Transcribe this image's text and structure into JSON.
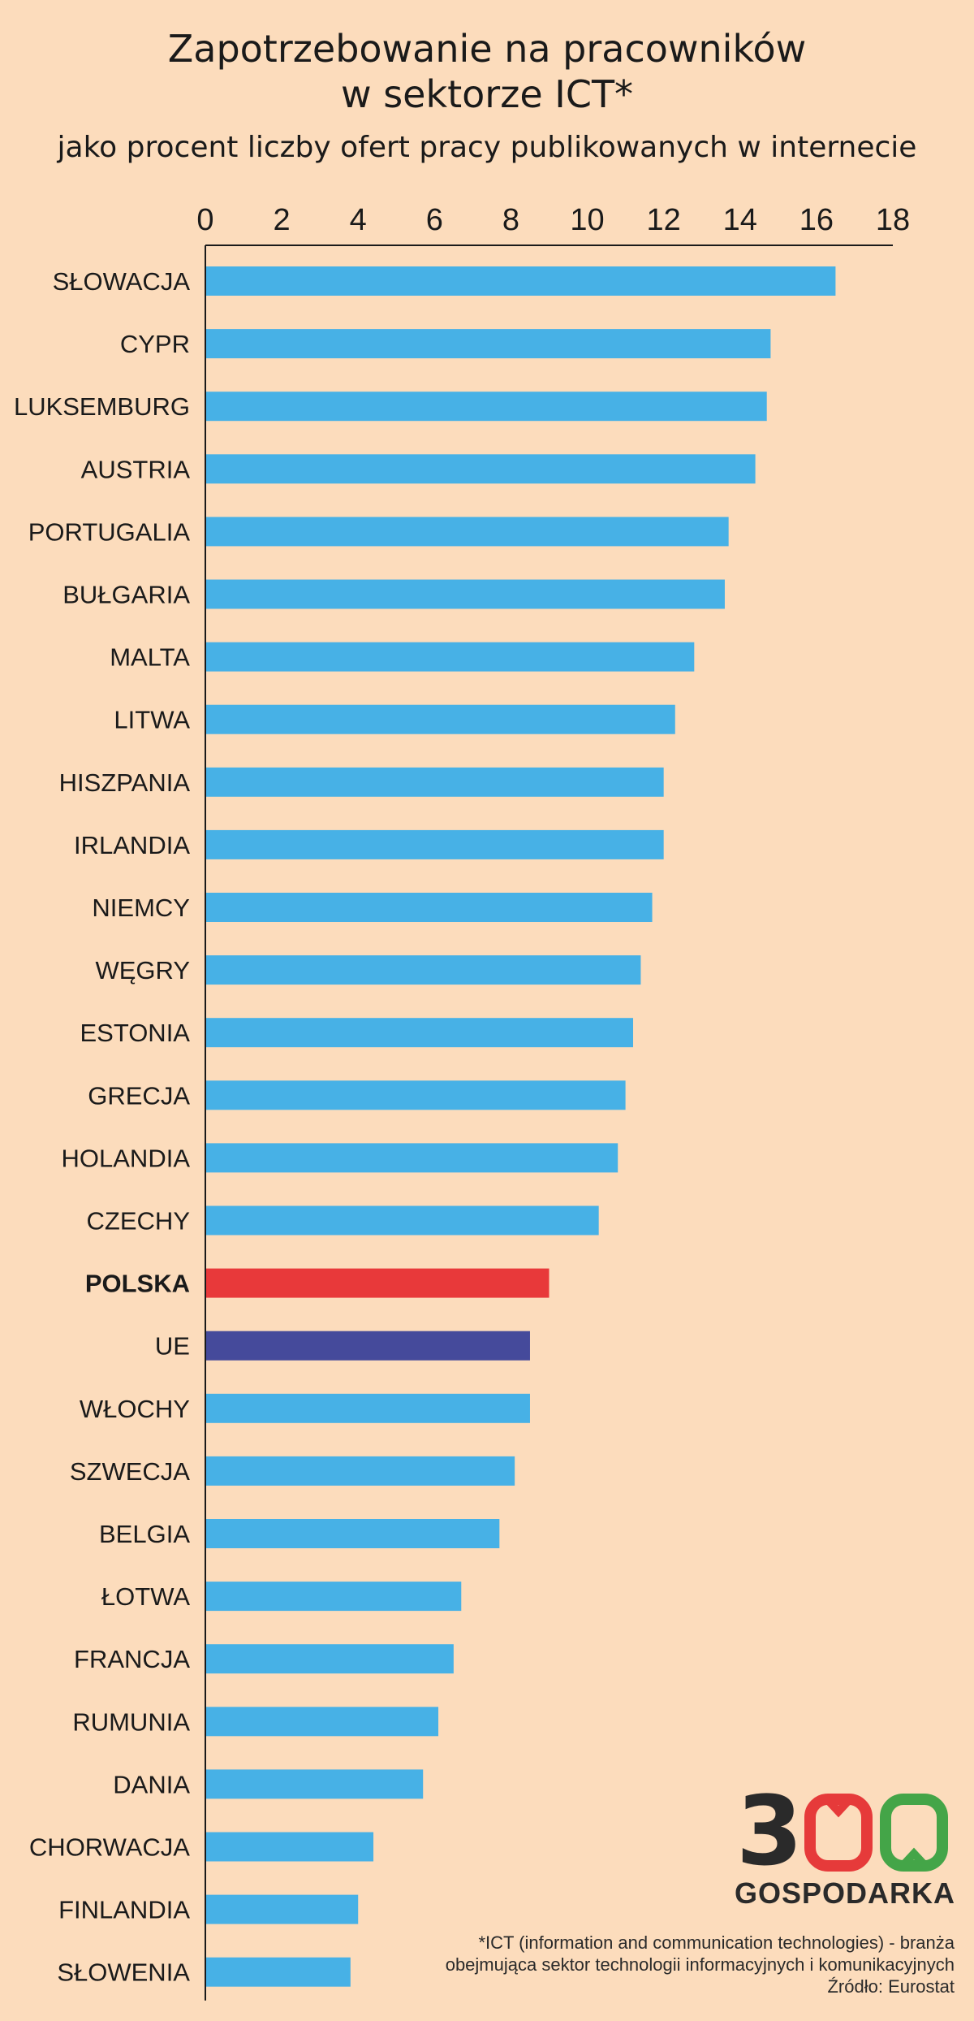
{
  "chart_data": {
    "type": "bar",
    "orientation": "horizontal",
    "title": "Zapotrzebowanie na pracowników w sektorze ICT*",
    "title_lines": [
      "Zapotrzebowanie na pracowników",
      "w sektorze ICT*"
    ],
    "subtitle": "jako procent liczby ofert pracy publikowanych w internecie",
    "xlim": [
      0,
      18
    ],
    "xticks": [
      "0",
      "2",
      "4",
      "6",
      "8",
      "10",
      "12",
      "14",
      "16",
      "18"
    ],
    "x_axis_position": "top",
    "grid": false,
    "categories": [
      "SŁOWACJA",
      "CYPR",
      "LUKSEMBURG",
      "AUSTRIA",
      "PORTUGALIA",
      "BUŁGARIA",
      "MALTA",
      "LITWA",
      "HISZPANIA",
      "IRLANDIA",
      "NIEMCY",
      "WĘGRY",
      "ESTONIA",
      "GRECJA",
      "HOLANDIA",
      "CZECHY",
      "POLSKA",
      "UE",
      "WŁOCHY",
      "SZWECJA",
      "BELGIA",
      "ŁOTWA",
      "FRANCJA",
      "RUMUNIA",
      "DANIA",
      "CHORWACJA",
      "FINLANDIA",
      "SŁOWENIA"
    ],
    "values": [
      16.5,
      14.8,
      14.7,
      14.4,
      13.7,
      13.6,
      12.8,
      12.3,
      12.0,
      12.0,
      11.7,
      11.4,
      11.2,
      11.0,
      10.8,
      10.3,
      9.0,
      8.5,
      8.5,
      8.1,
      7.7,
      6.7,
      6.5,
      6.1,
      5.7,
      4.4,
      4.0,
      3.8
    ],
    "highlight": {
      "POLSKA": "#e8393a",
      "UE": "#454a9b"
    },
    "bold_categories": [
      "POLSKA"
    ],
    "bar_color": "#47b1e6"
  },
  "colors": {
    "background": "#fcdcbc",
    "bar_default": "#47b1e6",
    "bar_poland": "#e8393a",
    "bar_eu": "#454a9b",
    "axis": "#1a1a1a",
    "logo_digit_3": "#2a2a2a",
    "logo_digit_0_red": "#e63a3a",
    "logo_digit_0_green": "#44a548"
  },
  "logo": {
    "digits": "300",
    "text": "GOSPODARKA"
  },
  "footnote": {
    "line1": "*ICT (information and communication technologies) - branża",
    "line2": "obejmująca sektor technologii informacyjnych i komunikacyjnych",
    "source": "Źródło: Eurostat"
  }
}
